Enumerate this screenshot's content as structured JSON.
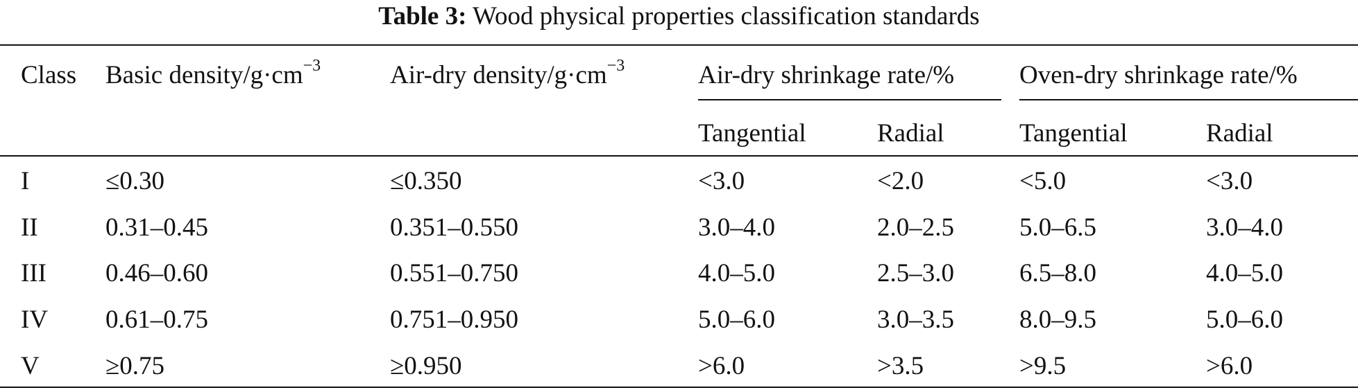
{
  "caption": {
    "label": "Table 3:",
    "title": "Wood physical properties classification standards"
  },
  "header": {
    "class": "Class",
    "basic_density": "Basic density/g·cm",
    "basic_density_exp": "−3",
    "air_dry_density": "Air-dry density/g·cm",
    "air_dry_density_exp": "−3",
    "air_dry_shrinkage": "Air-dry shrinkage rate/%",
    "oven_dry_shrinkage": "Oven-dry shrinkage rate/%",
    "tangential": "Tangential",
    "radial": "Radial"
  },
  "rows": [
    {
      "class": "I",
      "basic": "≤0.30",
      "airdry": "≤0.350",
      "ad_tan": "<3.0",
      "ad_rad": "<2.0",
      "od_tan": "<5.0",
      "od_rad": "<3.0"
    },
    {
      "class": "II",
      "basic": "0.31–0.45",
      "airdry": "0.351–0.550",
      "ad_tan": "3.0–4.0",
      "ad_rad": "2.0–2.5",
      "od_tan": "5.0–6.5",
      "od_rad": "3.0–4.0"
    },
    {
      "class": "III",
      "basic": "0.46–0.60",
      "airdry": "0.551–0.750",
      "ad_tan": "4.0–5.0",
      "ad_rad": "2.5–3.0",
      "od_tan": "6.5–8.0",
      "od_rad": "4.0–5.0"
    },
    {
      "class": "IV",
      "basic": "0.61–0.75",
      "airdry": "0.751–0.950",
      "ad_tan": "5.0–6.0",
      "ad_rad": "3.0–3.5",
      "od_tan": "8.0–9.5",
      "od_rad": "5.0–6.0"
    },
    {
      "class": "V",
      "basic": "≥0.75",
      "airdry": "≥0.950",
      "ad_tan": ">6.0",
      "ad_rad": ">3.5",
      "od_tan": ">9.5",
      "od_rad": ">6.0"
    }
  ]
}
